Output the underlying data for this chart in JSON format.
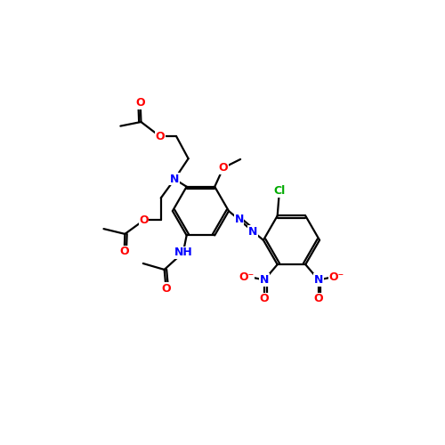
{
  "background": "#ffffff",
  "bond_color": "#000000",
  "atom_colors": {
    "N": "#0000ff",
    "O": "#ff0000",
    "Cl": "#00aa00",
    "C": "#000000"
  },
  "figsize": [
    5.0,
    5.0
  ],
  "dpi": 100,
  "xlim": [
    0,
    10
  ],
  "ylim": [
    0,
    10
  ]
}
